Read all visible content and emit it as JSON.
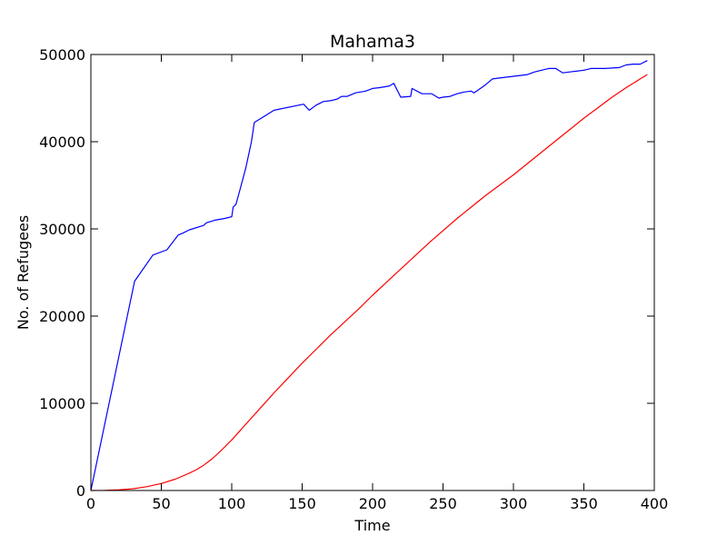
{
  "chart_data": {
    "type": "line",
    "title": "Mahama3",
    "xlabel": "Time",
    "ylabel": "No. of Refugees",
    "xlim": [
      0,
      400
    ],
    "ylim": [
      0,
      50000
    ],
    "xticks": [
      0,
      50,
      100,
      150,
      200,
      250,
      300,
      350,
      400
    ],
    "yticks": [
      0,
      10000,
      20000,
      30000,
      40000,
      50000
    ],
    "grid": false,
    "legend": "none",
    "series": [
      {
        "color": "#0000ff",
        "x": [
          0,
          31,
          44,
          54,
          62,
          65,
          70,
          80,
          82,
          88,
          95,
          100,
          101,
          103,
          105,
          110,
          114,
          116,
          130,
          151,
          155,
          160,
          165,
          170,
          175,
          178,
          182,
          188,
          195,
          200,
          205,
          212,
          215,
          220,
          227,
          228,
          235,
          242,
          247,
          250,
          255,
          260,
          265,
          270,
          272,
          280,
          285,
          290,
          300,
          310,
          315,
          320,
          325,
          330,
          335,
          340,
          350,
          355,
          365,
          375,
          380,
          385,
          390,
          395
        ],
        "y": [
          0,
          24000,
          27000,
          27600,
          29300,
          29500,
          29900,
          30400,
          30700,
          31000,
          31200,
          31400,
          32500,
          32800,
          34000,
          37000,
          40000,
          42200,
          43600,
          44300,
          43600,
          44200,
          44600,
          44700,
          44900,
          45200,
          45200,
          45600,
          45800,
          46100,
          46200,
          46400,
          46700,
          45100,
          45200,
          46100,
          45500,
          45500,
          45000,
          45100,
          45200,
          45500,
          45700,
          45800,
          45600,
          46500,
          47200,
          47300,
          47500,
          47700,
          48000,
          48200,
          48400,
          48400,
          47900,
          48000,
          48200,
          48400,
          48400,
          48500,
          48800,
          48900,
          48900,
          49300
        ]
      },
      {
        "color": "#ff0000",
        "x": [
          0,
          10,
          20,
          30,
          40,
          50,
          60,
          70,
          75,
          80,
          85,
          90,
          95,
          100,
          105,
          110,
          120,
          130,
          140,
          150,
          160,
          170,
          180,
          190,
          200,
          210,
          220,
          230,
          240,
          250,
          260,
          270,
          280,
          290,
          300,
          310,
          320,
          330,
          340,
          350,
          360,
          370,
          380,
          390,
          395
        ],
        "y": [
          0,
          20,
          80,
          200,
          450,
          800,
          1300,
          2000,
          2400,
          2900,
          3500,
          4200,
          5000,
          5800,
          6700,
          7600,
          9400,
          11200,
          12900,
          14600,
          16200,
          17800,
          19300,
          20800,
          22400,
          23900,
          25400,
          26900,
          28400,
          29800,
          31200,
          32500,
          33800,
          35000,
          36200,
          37500,
          38800,
          40100,
          41400,
          42700,
          43900,
          45100,
          46200,
          47200,
          47700
        ]
      }
    ]
  }
}
